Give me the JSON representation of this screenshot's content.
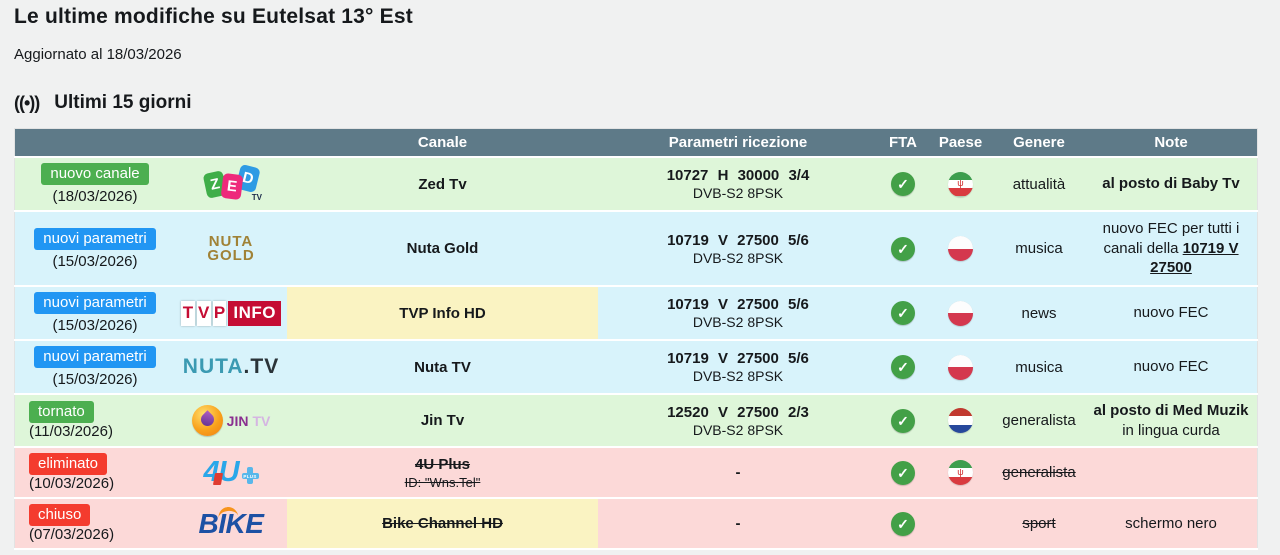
{
  "page": {
    "title": "Le ultime modifiche su Eutelsat 13° Est",
    "updated": "Aggiornato al 18/03/2026",
    "section": {
      "icon": "((•))",
      "title": "Ultimi 15 giorni"
    }
  },
  "colors": {
    "header_bg": "#5e7a88",
    "row_green": "#def6d9",
    "row_cyan": "#d8f3fb",
    "row_pink": "#fcd9d8",
    "cell_yellow": "#faf3c2",
    "badge_green": "#4caf50",
    "badge_blue": "#2196f3",
    "badge_red": "#f43b2e",
    "check_green": "#43a047"
  },
  "table": {
    "headers": [
      {
        "label": ""
      },
      {
        "label": ""
      },
      {
        "label": "Canale"
      },
      {
        "label": "Parametri ricezione"
      },
      {
        "label": "FTA"
      },
      {
        "label": "Paese"
      },
      {
        "label": "Genere"
      },
      {
        "label": "Note"
      }
    ],
    "rows": [
      {
        "row_color": "green",
        "badge": {
          "label": "nuovo canale",
          "color": "green",
          "layout": "stacked"
        },
        "date": "(18/03/2026)",
        "logo": {
          "type": "zed",
          "letters": [
            "Z",
            "E",
            "D"
          ],
          "suffix": "TV"
        },
        "channel": {
          "name": "Zed Tv"
        },
        "params": {
          "line1": "10727 H 30000 3/4",
          "line2": "DVB-S2 8PSK"
        },
        "fta": true,
        "country": "iran",
        "genre": {
          "label": "attualità"
        },
        "note": [
          {
            "text": "al posto di Baby Tv",
            "bold": true
          }
        ]
      },
      {
        "row_color": "cyan",
        "badge": {
          "label": "nuovi parametri",
          "color": "blue",
          "layout": "stacked"
        },
        "date": "(15/03/2026)",
        "logo": {
          "type": "nuta-gold",
          "line1": "NUTA",
          "line2": "GOLD"
        },
        "channel": {
          "name": "Nuta Gold"
        },
        "params": {
          "line1": "10719 V 27500 5/6",
          "line2": "DVB-S2 8PSK"
        },
        "fta": true,
        "country": "poland",
        "genre": {
          "label": "musica"
        },
        "note": [
          {
            "text": "nuovo FEC per tutti i canali della "
          },
          {
            "text": "10719 V 27500",
            "bold": true,
            "underline": true,
            "link": true
          }
        ]
      },
      {
        "row_color": "cyan",
        "badge": {
          "label": "nuovi parametri",
          "color": "blue",
          "layout": "stacked"
        },
        "date": "(15/03/2026)",
        "logo": {
          "type": "tvp",
          "boxes": [
            "T",
            "V",
            "P"
          ],
          "tag": "INFO"
        },
        "channel": {
          "name": "TVP Info HD",
          "highlight": true
        },
        "params": {
          "line1": "10719 V 27500 5/6",
          "line2": "DVB-S2 8PSK"
        },
        "fta": true,
        "country": "poland",
        "genre": {
          "label": "news"
        },
        "note": [
          {
            "text": "nuovo FEC"
          }
        ]
      },
      {
        "row_color": "cyan",
        "badge": {
          "label": "nuovi parametri",
          "color": "blue",
          "layout": "stacked"
        },
        "date": "(15/03/2026)",
        "logo": {
          "type": "nuta-tv",
          "main": "NUTA",
          "suffix": ".TV"
        },
        "channel": {
          "name": "Nuta TV"
        },
        "params": {
          "line1": "10719 V 27500 5/6",
          "line2": "DVB-S2 8PSK"
        },
        "fta": true,
        "country": "poland",
        "genre": {
          "label": "musica"
        },
        "note": [
          {
            "text": "nuovo FEC"
          }
        ]
      },
      {
        "row_color": "green",
        "badge": {
          "label": "tornato",
          "color": "green",
          "layout": "inline"
        },
        "date": "(11/03/2026)",
        "logo": {
          "type": "jin",
          "main": "JIN",
          "suffix": "TV"
        },
        "channel": {
          "name": "Jin Tv"
        },
        "params": {
          "line1": "12520 V 27500 2/3",
          "line2": "DVB-S2 8PSK"
        },
        "fta": true,
        "country": "netherlands",
        "genre": {
          "label": "generalista"
        },
        "note": [
          {
            "text": "al posto di Med Muzik",
            "bold": true,
            "block": true
          },
          {
            "text": "in lingua curda",
            "block": true
          }
        ]
      },
      {
        "row_color": "pink",
        "badge": {
          "label": "eliminato",
          "color": "red",
          "layout": "inline"
        },
        "date": "(10/03/2026)",
        "logo": {
          "type": "fouru",
          "main": "4U",
          "plus": "+",
          "sub": "PLUS"
        },
        "channel": {
          "name": "4U Plus",
          "strike": true,
          "sub": "ID: \"Wns.Tel\"",
          "sub_strike": true
        },
        "params": {
          "dash": "-"
        },
        "fta": true,
        "country": "iran",
        "genre": {
          "label": "generalista",
          "strike": true
        },
        "note": []
      },
      {
        "row_color": "pink",
        "badge": {
          "label": "chiuso",
          "color": "red",
          "layout": "inline"
        },
        "date": "(07/03/2026)",
        "logo": {
          "type": "bike",
          "text": "BIKE"
        },
        "channel": {
          "name": "Bike Channel HD",
          "strike": true,
          "highlight": true
        },
        "params": {
          "dash": "-"
        },
        "fta": true,
        "country": null,
        "genre": {
          "label": "sport",
          "strike": true
        },
        "note": [
          {
            "text": "schermo nero"
          }
        ]
      }
    ]
  }
}
